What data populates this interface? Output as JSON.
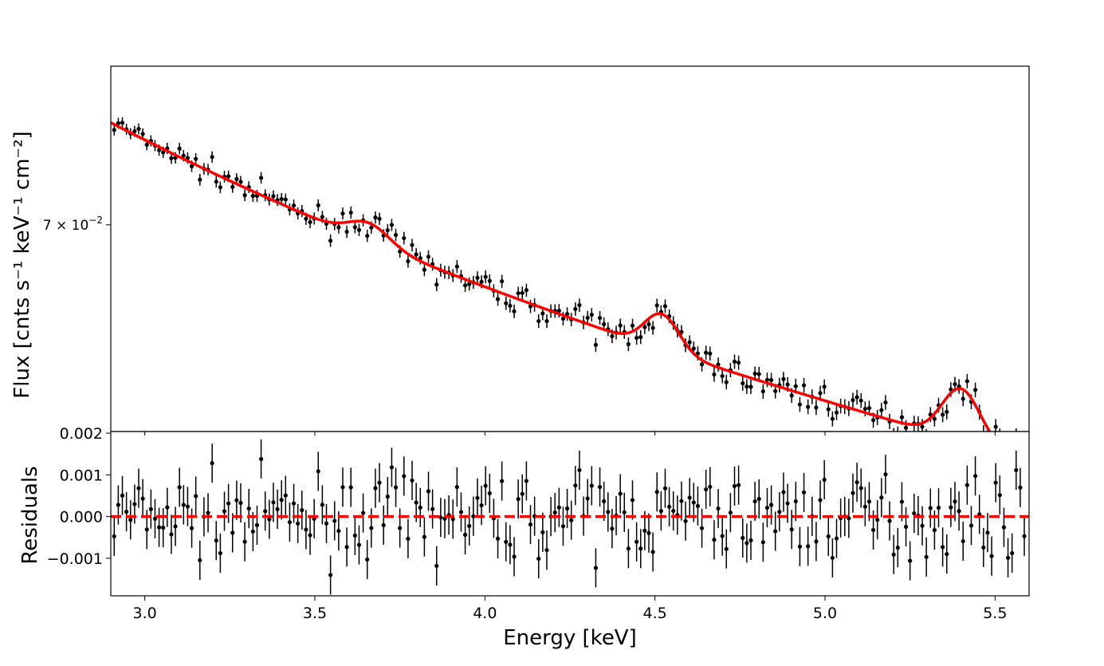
{
  "chart_data": {
    "type": "scatter",
    "top_panel": {
      "ylabel": "Flux [cnts s⁻¹ keV⁻¹ cm⁻²]",
      "yscale": "log",
      "ylim": [
        0.0558,
        0.0833
      ],
      "y_tick_label_prefix": "7 × 10",
      "y_tick_label_exp": "−2",
      "y_tick_value": 0.07
    },
    "bottom_panel": {
      "ylabel": "Residuals",
      "ylim": [
        -0.0019,
        0.00204
      ],
      "y_ticks": [
        -0.001,
        0.0,
        0.001,
        0.002
      ],
      "y_tick_labels": [
        "−0.001",
        "0.000",
        "0.001",
        "0.002"
      ],
      "zero_line_color": "#ff0000"
    },
    "x_axis": {
      "xlabel": "Energy [keV]",
      "xlim": [
        2.9,
        5.6
      ],
      "ticks": [
        3.0,
        3.5,
        4.0,
        4.5,
        5.0,
        5.5
      ],
      "tick_labels": [
        "3.0",
        "3.5",
        "4.0",
        "4.5",
        "5.0",
        "5.5"
      ]
    },
    "grid": false,
    "series": [
      {
        "role": "data",
        "marker": "dot with error bars",
        "color": "#000000"
      },
      {
        "role": "model",
        "color": "#ff0000"
      }
    ]
  }
}
